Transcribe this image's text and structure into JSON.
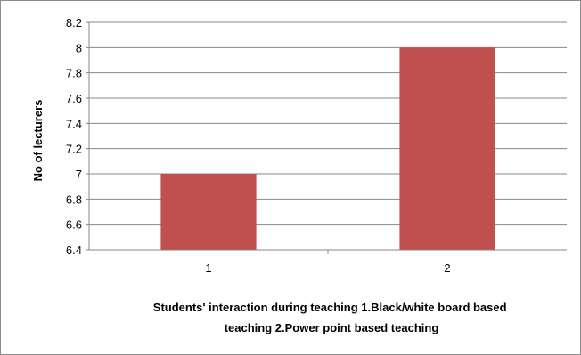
{
  "chart_data": {
    "type": "bar",
    "categories": [
      "1",
      "2"
    ],
    "values": [
      7,
      8
    ],
    "title": "",
    "xlabel_lines": [
      "Students' interaction during teaching 1.Black/white board based",
      "teaching 2.Power point based teaching"
    ],
    "ylabel": "No of lecturers",
    "ylim": [
      6.4,
      8.2
    ],
    "yticks": [
      "6.4",
      "6.6",
      "6.8",
      "7",
      "7.2",
      "7.4",
      "7.6",
      "7.8",
      "8",
      "8.2"
    ],
    "grid": true,
    "legend": "none",
    "bar_color": "#c0504d",
    "gridline_color": "#868686"
  }
}
